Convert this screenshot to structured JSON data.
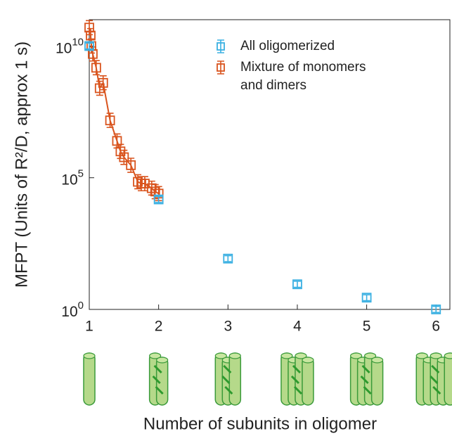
{
  "chart_data": {
    "type": "scatter",
    "xlabel": "Number of subunits in oligomer",
    "ylabel": "MFPT (Units of R²/D, approx 1 s)",
    "xlim": [
      1,
      6.2
    ],
    "ylim": [
      1,
      100000000000.0
    ],
    "log_y": true,
    "xticks": [
      1,
      2,
      3,
      4,
      5,
      6
    ],
    "yticks": [
      {
        "value": 1,
        "label": "10^0"
      },
      {
        "value": 100000,
        "label": "10^5"
      },
      {
        "value": 10000000000,
        "label": "10^10"
      }
    ],
    "legend_position": "upper right",
    "series": [
      {
        "name": "All oligomerized",
        "color": "#3ab0e2",
        "connected": false,
        "x": [
          1,
          2,
          3,
          4,
          5,
          6
        ],
        "values": [
          10000000000,
          15000,
          85,
          9,
          2.8,
          1
        ],
        "lower": [
          7700000000,
          11500,
          65,
          6.9,
          2.15,
          0.77
        ],
        "upper": [
          13000000000,
          19500,
          110,
          11.7,
          3.6,
          1.3
        ]
      },
      {
        "name": "Mixture of monomers\nand dimers",
        "color": "#d9541e",
        "connected": true,
        "x": [
          1.0,
          1.02,
          1.03,
          1.05,
          1.1,
          1.15,
          1.2,
          1.3,
          1.4,
          1.45,
          1.5,
          1.6,
          1.7,
          1.75,
          1.8,
          1.9,
          1.95,
          2.0
        ],
        "values": [
          50000000000,
          25000000000,
          10000000000,
          5000000000,
          1500000000,
          250000000,
          400000000,
          15000000,
          2500000,
          1000000,
          600000,
          300000,
          70000,
          60000,
          60000,
          40000,
          30000,
          25000
        ],
        "lower": [
          27000000000,
          13500000000,
          5400000000,
          2700000000,
          810000000,
          135000000,
          220000000,
          8100000,
          1350000,
          540000,
          320000,
          160000,
          38000,
          32000,
          32000,
          22000,
          16000,
          13500
        ],
        "upper": [
          92000000000,
          46000000000,
          18500000000,
          9200000000,
          2800000000,
          460000000,
          740000000,
          28000000,
          4600000,
          1850000,
          1100000,
          550000,
          130000,
          110000,
          110000,
          74000,
          55000,
          46000
        ]
      }
    ]
  }
}
